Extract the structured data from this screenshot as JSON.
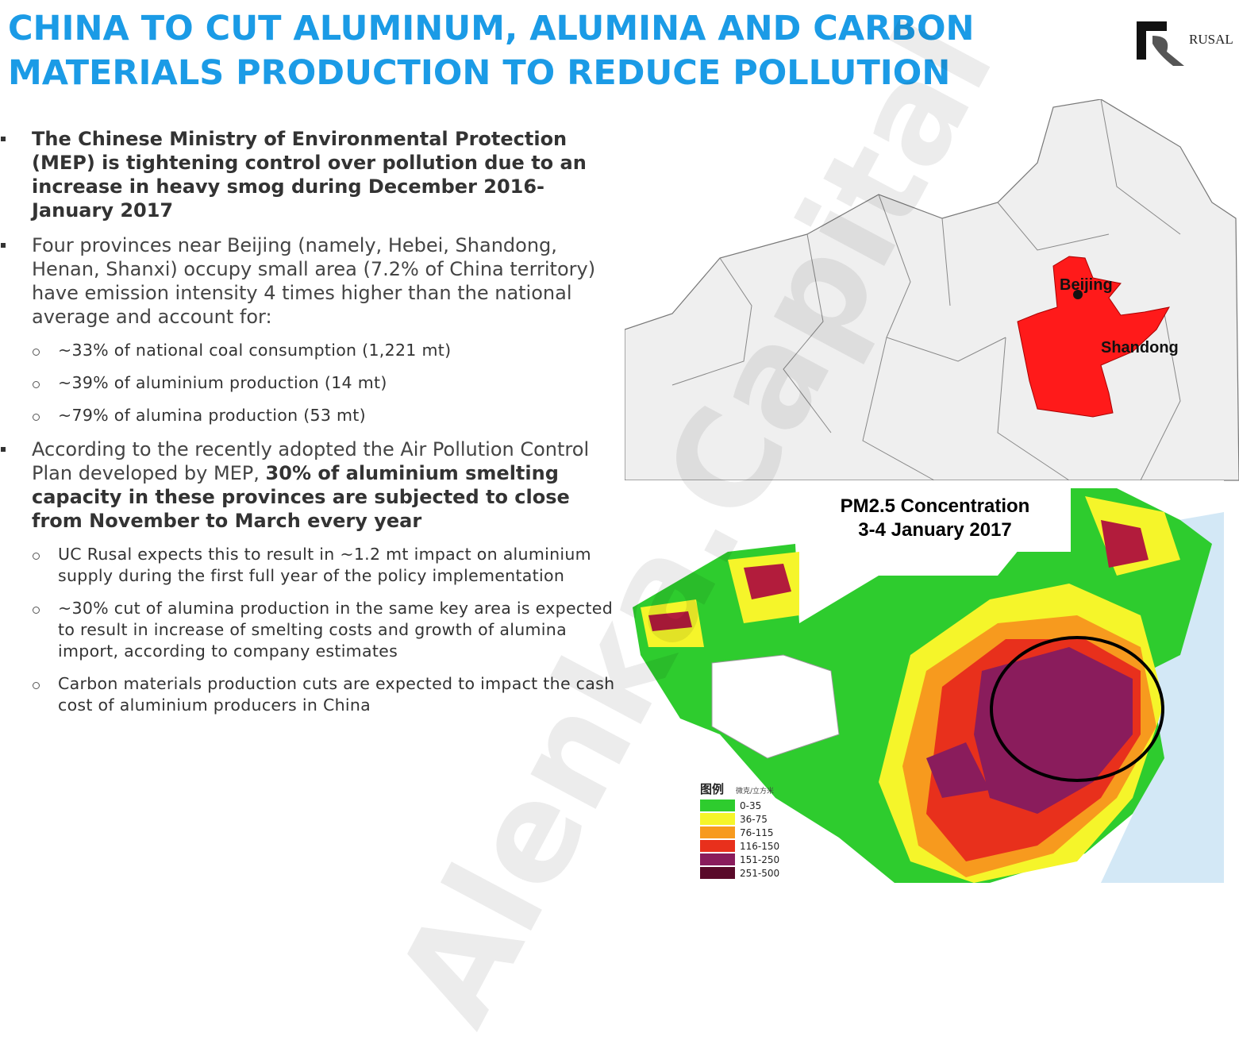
{
  "header": {
    "title_lines": [
      "CHINA TO CUT ALUMINUM, ALUMINA AND CARBON",
      "MATERIALS PRODUCTION TO REDUCE POLLUTION"
    ],
    "logo": "RUSAL"
  },
  "bullets": [
    {
      "segments": [
        {
          "text": "The Chinese Ministry of Environmental Protection (MEP) is tightening control over pollution due to an increase in heavy smog during December 2016-January 2017",
          "bold": true
        }
      ],
      "sub": []
    },
    {
      "segments": [
        {
          "text": "Four provinces near Beijing (namely, Hebei, Shandong, Henan, Shanxi) occupy small area (7.2% of China territory) have emission intensity 4 times higher than the national average and account for:",
          "bold": false
        }
      ],
      "sub": [
        "~33% of national coal consumption (1,221 mt)",
        "~39% of aluminium production (14 mt)",
        "~79% of alumina production (53 mt)"
      ]
    },
    {
      "segments": [
        {
          "text": "According to the recently adopted the Air Pollution Control Plan developed by MEP, ",
          "bold": false
        },
        {
          "text": "30% of aluminium smelting capacity in these provinces are subjected to close from November to March every year",
          "bold": true
        }
      ],
      "sub": [
        "UC Rusal expects this to result in ~1.2 mt impact on aluminium supply during the first full year of the policy implementation",
        "~30% cut of alumina production in the same key area is expected to result in increase of smelting costs and growth of alumina import, according to company estimates",
        "Carbon materials production cuts are expected to impact the cash cost of aluminium producers in China"
      ]
    }
  ],
  "map": {
    "labels": [
      "Beijing",
      "Shandong"
    ]
  },
  "heatmap": {
    "title_lines": [
      "PM2.5 Concentration",
      "3-4 January 2017"
    ],
    "legend": {
      "title": "图例",
      "unit": "微克/立方米",
      "items": [
        {
          "label": "0-35",
          "color": "#2ecc2e"
        },
        {
          "label": "36-75",
          "color": "#f5f52a"
        },
        {
          "label": "76-115",
          "color": "#f79a1e"
        },
        {
          "label": "116-150",
          "color": "#e8301c"
        },
        {
          "label": "151-250",
          "color": "#8a1c5c"
        },
        {
          "label": "251-500",
          "color": "#5a0a2a"
        }
      ]
    }
  },
  "watermark": "Alenka.Capital"
}
